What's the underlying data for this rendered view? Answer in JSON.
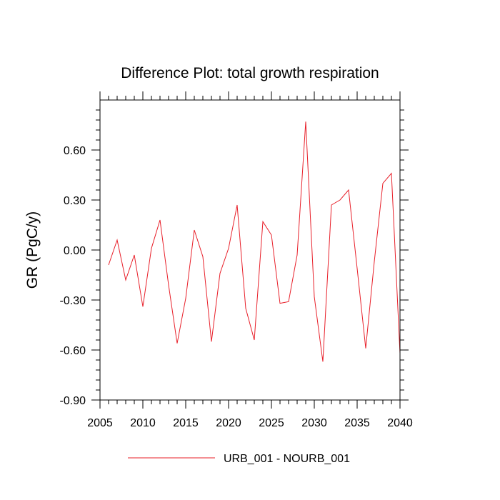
{
  "chart_data": {
    "type": "line",
    "title": "Difference Plot: total growth respiration",
    "xlabel": "",
    "ylabel": "GR  (PgC/y)",
    "xlim": [
      2005,
      2040
    ],
    "ylim": [
      -0.9,
      0.9
    ],
    "x_ticks": [
      "2005",
      "2010",
      "2015",
      "2020",
      "2025",
      "2030",
      "2035",
      "2040"
    ],
    "y_ticks": [
      "-0.90",
      "-0.60",
      "-0.30",
      "0.00",
      "0.30",
      "0.60"
    ],
    "grid": false,
    "legend_position": "bottom",
    "series": [
      {
        "name": "URB_001 - NOURB_001",
        "color": "#e8202a",
        "x": [
          2006,
          2007,
          2008,
          2009,
          2010,
          2011,
          2012,
          2013,
          2014,
          2015,
          2016,
          2017,
          2018,
          2019,
          2020,
          2021,
          2022,
          2023,
          2024,
          2025,
          2026,
          2027,
          2028,
          2029,
          2030,
          2031,
          2032,
          2033,
          2034,
          2035,
          2036,
          2037,
          2038,
          2039,
          2040
        ],
        "y": [
          -0.09,
          0.06,
          -0.18,
          -0.03,
          -0.34,
          0.01,
          0.18,
          -0.21,
          -0.56,
          -0.29,
          0.12,
          -0.04,
          -0.55,
          -0.14,
          0.01,
          0.27,
          -0.35,
          -0.54,
          0.17,
          0.09,
          -0.32,
          -0.31,
          -0.03,
          0.77,
          -0.28,
          -0.67,
          0.27,
          0.3,
          0.36,
          -0.11,
          -0.59,
          -0.07,
          0.4,
          0.46,
          -0.62
        ]
      }
    ]
  }
}
